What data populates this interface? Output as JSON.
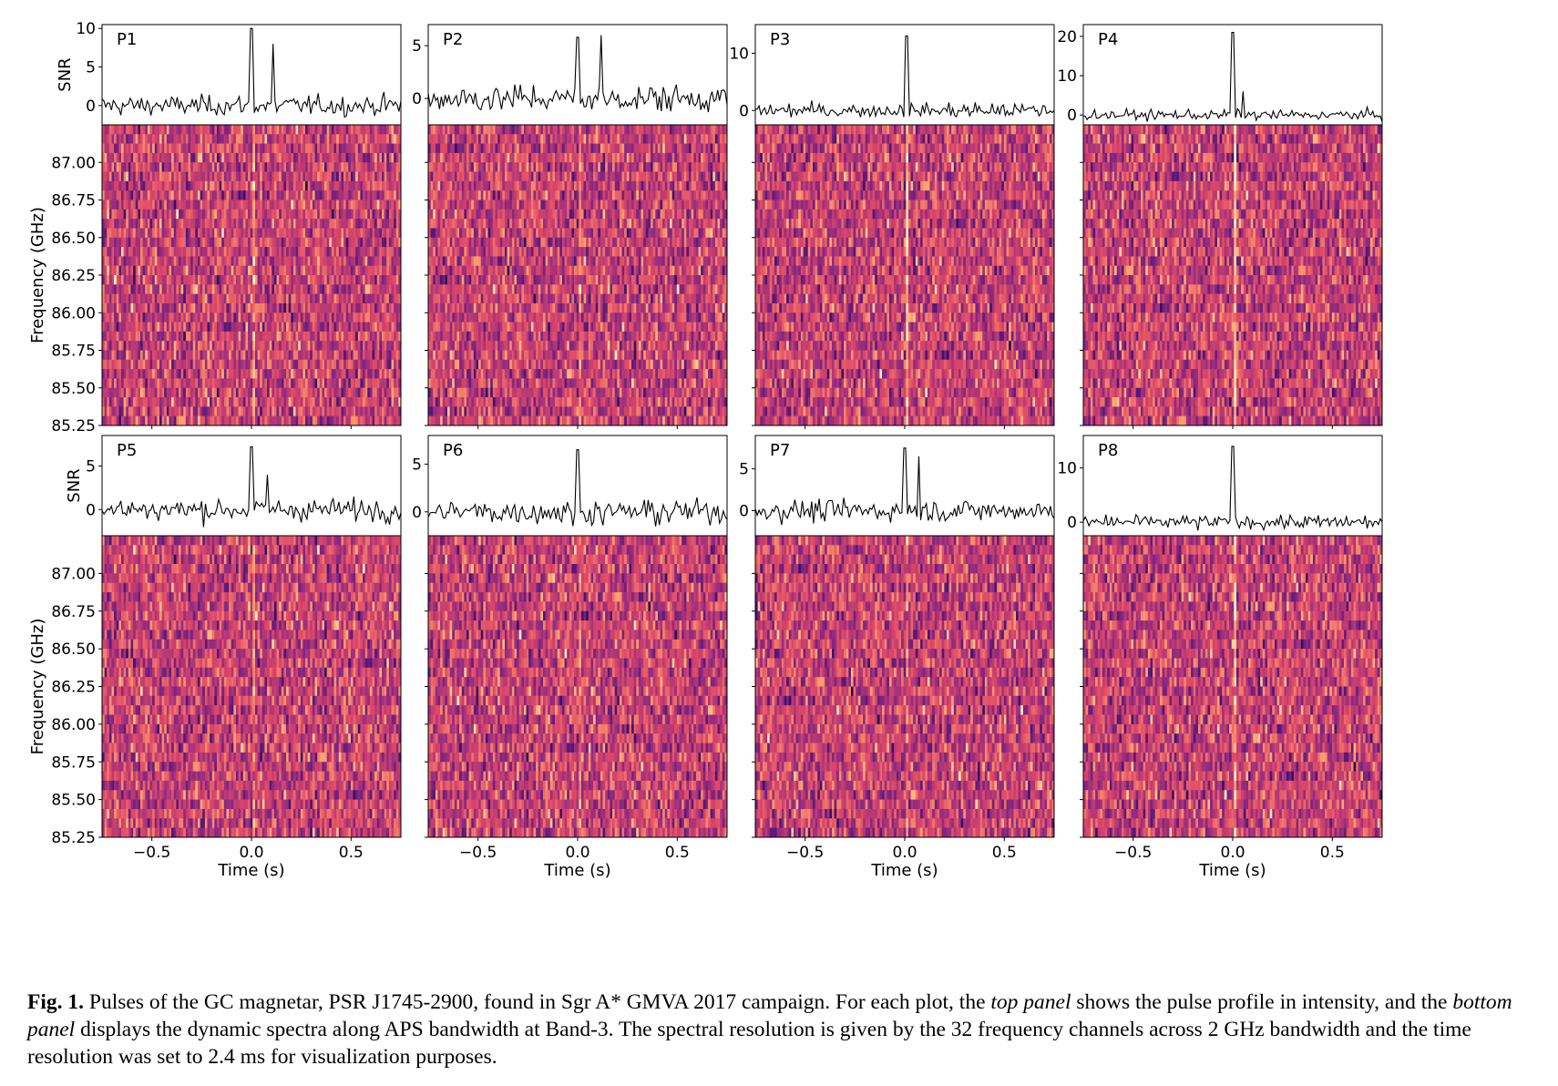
{
  "chart_data": {
    "type": "heatmap",
    "description_panels": "8 panels (P1-P8), each a pulse profile (SNR vs time) above a dynamic spectrum (frequency vs time)",
    "colormap": [
      "#000004",
      "#3b0f70",
      "#8c2981",
      "#de4968",
      "#fe9f6d",
      "#fcfdbf"
    ],
    "frequency_ticks": [
      "85.25",
      "85.50",
      "85.75",
      "86.00",
      "86.25",
      "86.50",
      "86.75",
      "87.00"
    ],
    "frequency_range_ghz": [
      85.25,
      87.25
    ],
    "frequency_channels": 32,
    "time_ticks": [
      "−0.5",
      "0.0",
      "0.5"
    ],
    "time_range_s": [
      -0.75,
      0.75
    ],
    "xlabel": "Time (s)",
    "ylabel_profile": "SNR",
    "ylabel_spectrum": "Frequency (GHz)",
    "panels": [
      {
        "id": "P1",
        "snr_ticks": [
          "0",
          "5",
          "10"
        ],
        "snr_range": [
          -2.5,
          10.5
        ],
        "peaks": [
          {
            "t": 0.0,
            "snr": 10
          },
          {
            "t": 0.11,
            "snr": 8
          }
        ]
      },
      {
        "id": "P2",
        "snr_ticks": [
          "0",
          "5"
        ],
        "snr_range": [
          -2.5,
          7.0
        ],
        "peaks": [
          {
            "t": 0.0,
            "snr": 5.8
          },
          {
            "t": 0.12,
            "snr": 6.0
          }
        ]
      },
      {
        "id": "P3",
        "snr_ticks": [
          "0",
          "10"
        ],
        "snr_range": [
          -2.5,
          15.0
        ],
        "peaks": [
          {
            "t": 0.01,
            "snr": 13
          }
        ]
      },
      {
        "id": "P4",
        "snr_ticks": [
          "0",
          "10",
          "20"
        ],
        "snr_range": [
          -2.5,
          23.0
        ],
        "peaks": [
          {
            "t": 0.0,
            "snr": 21
          },
          {
            "t": 0.05,
            "snr": 6
          }
        ]
      },
      {
        "id": "P5",
        "snr_ticks": [
          "0",
          "5"
        ],
        "snr_range": [
          -3.0,
          8.5
        ],
        "peaks": [
          {
            "t": 0.0,
            "snr": 7.2
          },
          {
            "t": 0.08,
            "snr": 4
          }
        ]
      },
      {
        "id": "P6",
        "snr_ticks": [
          "0",
          "5"
        ],
        "snr_range": [
          -2.5,
          8.0
        ],
        "peaks": [
          {
            "t": 0.0,
            "snr": 6.5
          }
        ]
      },
      {
        "id": "P7",
        "snr_ticks": [
          "0",
          "5"
        ],
        "snr_range": [
          -3.0,
          9.0
        ],
        "peaks": [
          {
            "t": 0.0,
            "snr": 7.5
          },
          {
            "t": 0.07,
            "snr": 6.5
          }
        ]
      },
      {
        "id": "P8",
        "snr_ticks": [
          "0",
          "10"
        ],
        "snr_range": [
          -2.5,
          16.0
        ],
        "peaks": [
          {
            "t": 0.0,
            "snr": 14
          }
        ]
      }
    ]
  },
  "caption": {
    "label": "Fig. 1.",
    "text_1": " Pulses of the GC magnetar, PSR J1745-2900, found in Sgr A* GMVA 2017 campaign. For each plot, the ",
    "italic_1": "top panel",
    "text_2": " shows the pulse profile in intensity, and the ",
    "italic_2": "bottom panel",
    "text_3": " displays the dynamic spectra along APS bandwidth at Band-3. The spectral resolution is given by the 32 frequency channels across 2 GHz bandwidth and the time resolution was set to 2.4 ms for visualization purposes."
  }
}
